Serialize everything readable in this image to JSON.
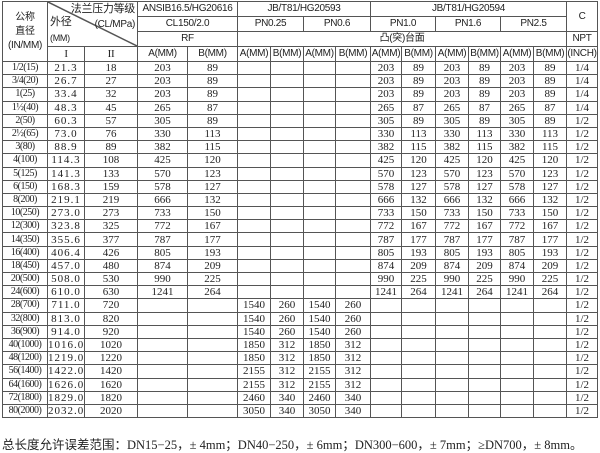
{
  "header": {
    "nominal_diameter": [
      "公称",
      "直径",
      "(IN/MM)"
    ],
    "pressure_class": "法兰压力等级",
    "pressure_unit": "(CL/MPa)",
    "outer_diameter": "外径",
    "outer_diameter_unit": "(MM)",
    "od_series": [
      "I",
      "II"
    ],
    "standard_ansi": "ANSIB16.5/HG20616",
    "standard_hg20593": "JB/T81/HG20593",
    "standard_hg20594": "JB/T81/HG20594",
    "c_label": "C",
    "classes": [
      "CL150/2.0",
      "PN0.25",
      "PN0.6",
      "PN1.0",
      "PN1.6",
      "PN2.5"
    ],
    "face_rf": "RF",
    "face_raised": "凸(突)台面",
    "npt": "NPT",
    "inch": "(INCH)",
    "a_mm": "A(MM)",
    "b_mm": "B(MM)"
  },
  "rows": [
    [
      "1/2(15)",
      "21.3",
      "18",
      "203",
      "89",
      "",
      "",
      "",
      "",
      "203",
      "89",
      "203",
      "89",
      "203",
      "89",
      "1/4"
    ],
    [
      "3/4(20)",
      "26.7",
      "27",
      "203",
      "89",
      "",
      "",
      "",
      "",
      "203",
      "89",
      "203",
      "89",
      "203",
      "89",
      "1/4"
    ],
    [
      "1(25)",
      "33.4",
      "32",
      "203",
      "89",
      "",
      "",
      "",
      "",
      "203",
      "89",
      "203",
      "89",
      "203",
      "89",
      "1/4"
    ],
    [
      "1½(40)",
      "48.3",
      "45",
      "265",
      "87",
      "",
      "",
      "",
      "",
      "265",
      "87",
      "265",
      "87",
      "265",
      "87",
      "1/4"
    ],
    [
      "2(50)",
      "60.3",
      "57",
      "305",
      "89",
      "",
      "",
      "",
      "",
      "305",
      "89",
      "305",
      "89",
      "305",
      "89",
      "1/2"
    ],
    [
      "2½(65)",
      "73.0",
      "76",
      "330",
      "113",
      "",
      "",
      "",
      "",
      "330",
      "113",
      "330",
      "113",
      "330",
      "113",
      "1/2"
    ],
    [
      "3(80)",
      "88.9",
      "89",
      "382",
      "115",
      "",
      "",
      "",
      "",
      "382",
      "115",
      "382",
      "115",
      "382",
      "115",
      "1/2"
    ],
    [
      "4(100)",
      "114.3",
      "108",
      "425",
      "120",
      "",
      "",
      "",
      "",
      "425",
      "120",
      "425",
      "120",
      "425",
      "120",
      "1/2"
    ],
    [
      "5(125)",
      "141.3",
      "133",
      "570",
      "123",
      "",
      "",
      "",
      "",
      "570",
      "123",
      "570",
      "123",
      "570",
      "123",
      "1/2"
    ],
    [
      "6(150)",
      "168.3",
      "159",
      "578",
      "127",
      "",
      "",
      "",
      "",
      "578",
      "127",
      "578",
      "127",
      "578",
      "127",
      "1/2"
    ],
    [
      "8(200)",
      "219.1",
      "219",
      "666",
      "132",
      "",
      "",
      "",
      "",
      "666",
      "132",
      "666",
      "132",
      "666",
      "132",
      "1/2"
    ],
    [
      "10(250)",
      "273.0",
      "273",
      "733",
      "150",
      "",
      "",
      "",
      "",
      "733",
      "150",
      "733",
      "150",
      "733",
      "150",
      "1/2"
    ],
    [
      "12(300)",
      "323.8",
      "325",
      "772",
      "167",
      "",
      "",
      "",
      "",
      "772",
      "167",
      "772",
      "167",
      "772",
      "167",
      "1/2"
    ],
    [
      "14(350)",
      "355.6",
      "377",
      "787",
      "177",
      "",
      "",
      "",
      "",
      "787",
      "177",
      "787",
      "177",
      "787",
      "177",
      "1/2"
    ],
    [
      "16(400)",
      "406.4",
      "426",
      "805",
      "193",
      "",
      "",
      "",
      "",
      "805",
      "193",
      "805",
      "193",
      "805",
      "193",
      "1/2"
    ],
    [
      "18(450)",
      "457.0",
      "480",
      "874",
      "209",
      "",
      "",
      "",
      "",
      "874",
      "209",
      "874",
      "209",
      "874",
      "209",
      "1/2"
    ],
    [
      "20(500)",
      "508.0",
      "530",
      "990",
      "225",
      "",
      "",
      "",
      "",
      "990",
      "225",
      "990",
      "225",
      "990",
      "225",
      "1/2"
    ],
    [
      "24(600)",
      "610.0",
      "630",
      "1241",
      "264",
      "",
      "",
      "",
      "",
      "1241",
      "264",
      "1241",
      "264",
      "1241",
      "264",
      "1/2"
    ],
    [
      "28(700)",
      "711.0",
      "720",
      "",
      "",
      "1540",
      "260",
      "1540",
      "260",
      "",
      "",
      "",
      "",
      "",
      "",
      "1/2"
    ],
    [
      "32(800)",
      "813.0",
      "820",
      "",
      "",
      "1540",
      "260",
      "1540",
      "260",
      "",
      "",
      "",
      "",
      "",
      "",
      "1/2"
    ],
    [
      "36(900)",
      "914.0",
      "920",
      "",
      "",
      "1540",
      "260",
      "1540",
      "260",
      "",
      "",
      "",
      "",
      "",
      "",
      "1/2"
    ],
    [
      "40(1000)",
      "1016.0",
      "1020",
      "",
      "",
      "1850",
      "312",
      "1850",
      "312",
      "",
      "",
      "",
      "",
      "",
      "",
      "1/2"
    ],
    [
      "48(1200)",
      "1219.0",
      "1220",
      "",
      "",
      "1850",
      "312",
      "1850",
      "312",
      "",
      "",
      "",
      "",
      "",
      "",
      "1/2"
    ],
    [
      "56(1400)",
      "1422.0",
      "1420",
      "",
      "",
      "2155",
      "312",
      "2155",
      "312",
      "",
      "",
      "",
      "",
      "",
      "",
      "1/2"
    ],
    [
      "64(1600)",
      "1626.0",
      "1620",
      "",
      "",
      "2155",
      "312",
      "2155",
      "312",
      "",
      "",
      "",
      "",
      "",
      "",
      "1/2"
    ],
    [
      "72(1800)",
      "1829.0",
      "1820",
      "",
      "",
      "2460",
      "340",
      "2460",
      "340",
      "",
      "",
      "",
      "",
      "",
      "",
      "1/2"
    ],
    [
      "80(2000)",
      "2032.0",
      "2020",
      "",
      "",
      "3050",
      "340",
      "3050",
      "340",
      "",
      "",
      "",
      "",
      "",
      "",
      "1/2"
    ]
  ],
  "footer": "总长度允许误差范围：DN15−25，± 4mm；DN40−250，± 6mm；DN300−600，± 7mm；≥DN700，± 8mm。"
}
